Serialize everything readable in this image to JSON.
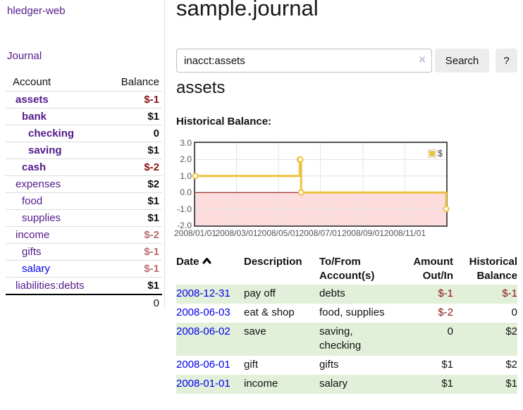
{
  "colors": {
    "purple": "#551A8B",
    "blue": "#0000EE",
    "neg_strong": "#8b1414",
    "neg_light": "#bb6c6c",
    "stripe_green": "#e2efd9",
    "btn_bg": "#ececec",
    "border_gray": "#dddddd",
    "pink": "#fcdcdc",
    "zero_red": "#8b0000",
    "chart_yellow": "#edc240",
    "chart_border": "#545454",
    "axis_text": "#545454",
    "grid": "#e3e3e3"
  },
  "sidebar": {
    "app_title": "hledger-web",
    "nav": {
      "journal": "Journal"
    },
    "table": {
      "account_header": "Account",
      "balance_header": "Balance",
      "rows": [
        {
          "name": "assets",
          "balance": "$-1",
          "level": 1,
          "bold": true,
          "neg": "strong"
        },
        {
          "name": "bank",
          "balance": "$1",
          "level": 2,
          "bold": true,
          "neg": ""
        },
        {
          "name": "checking",
          "balance": "0",
          "level": 3,
          "bold": true,
          "neg": ""
        },
        {
          "name": "saving",
          "balance": "$1",
          "level": 3,
          "bold": true,
          "neg": ""
        },
        {
          "name": "cash",
          "balance": "$-2",
          "level": 2,
          "bold": true,
          "neg": "strong"
        },
        {
          "name": "expenses",
          "balance": "$2",
          "level": 1,
          "bold": false,
          "neg": ""
        },
        {
          "name": "food",
          "balance": "$1",
          "level": 2,
          "bold": false,
          "neg": ""
        },
        {
          "name": "supplies",
          "balance": "$1",
          "level": 2,
          "bold": false,
          "neg": ""
        },
        {
          "name": "income",
          "balance": "$-2",
          "level": 1,
          "bold": false,
          "neg": "light"
        },
        {
          "name": "gifts",
          "balance": "$-1",
          "level": 2,
          "bold": false,
          "neg": "light"
        },
        {
          "name": "salary",
          "balance": "$-1",
          "level": 2,
          "bold": false,
          "neg": "light",
          "unvisited": true
        },
        {
          "name": "liabilities:debts",
          "balance": "$1",
          "level": 1,
          "bold": false,
          "neg": ""
        }
      ],
      "total": "0"
    }
  },
  "main": {
    "title": "sample.journal",
    "search": {
      "value": "inacct:assets",
      "clear_icon": "×",
      "search_button": "Search",
      "help_button": "?"
    },
    "account_heading": "assets",
    "chart_label": "Historical Balance:"
  },
  "chart_data": {
    "type": "line",
    "step": true,
    "title": "Historical Balance",
    "xlim": [
      "2008-01-01",
      "2008-12-31"
    ],
    "ylim": [
      -2,
      3
    ],
    "x_ticks": [
      "2008/01/01",
      "2008/03/01",
      "2008/05/01",
      "2008/07/01",
      "2008/09/01",
      "2008/11/01"
    ],
    "y_ticks": [
      3.0,
      2.0,
      1.0,
      0.0,
      -1.0,
      -2.0
    ],
    "series": [
      {
        "name": "$",
        "color": "#edc240",
        "points": [
          [
            "2008-01-01",
            1
          ],
          [
            "2008-06-01",
            2
          ],
          [
            "2008-06-02",
            2
          ],
          [
            "2008-06-03",
            0
          ],
          [
            "2008-12-31",
            -1
          ]
        ]
      }
    ],
    "grid": true,
    "legend_position": "top-right",
    "negative_region_color": "#fcdcdc",
    "zero_line_color": "#8b0000"
  },
  "register": {
    "columns": [
      "Date",
      "Description",
      "To/From\nAccount(s)",
      "Amount\nOut/In",
      "Historical\nBalance"
    ],
    "rows": [
      {
        "date": "2008-12-31",
        "description": "pay off",
        "accounts": [
          "debts"
        ],
        "amount": "$-1",
        "balance": "$-1",
        "amount_neg": true,
        "balance_neg": true
      },
      {
        "date": "2008-06-03",
        "description": "eat & shop",
        "accounts": [
          "food, supplies"
        ],
        "amount": "$-2",
        "balance": "0",
        "amount_neg": true,
        "balance_neg": false
      },
      {
        "date": "2008-06-02",
        "description": "save",
        "accounts": [
          "saving,",
          "checking"
        ],
        "amount": "0",
        "balance": "$2",
        "amount_neg": false,
        "balance_neg": false
      },
      {
        "date": "2008-06-01",
        "description": "gift",
        "accounts": [
          "gifts"
        ],
        "amount": "$1",
        "balance": "$2",
        "amount_neg": false,
        "balance_neg": false
      },
      {
        "date": "2008-01-01",
        "description": "income",
        "accounts": [
          "salary"
        ],
        "amount": "$1",
        "balance": "$1",
        "amount_neg": false,
        "balance_neg": false
      }
    ]
  }
}
